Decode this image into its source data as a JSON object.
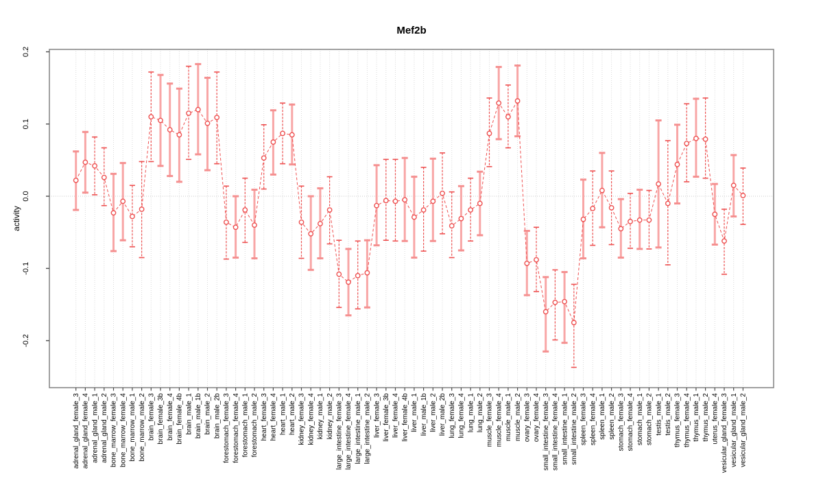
{
  "figure": {
    "title": "Mef2b"
  },
  "chart_data": {
    "type": "line",
    "title": "Mef2b",
    "xlabel": "",
    "ylabel": "activity",
    "ylim": [
      -0.265,
      0.203
    ],
    "yticks": [
      -0.2,
      -0.1,
      0.0,
      0.1,
      0.2
    ],
    "ytick_labels": [
      "-0.2",
      "-0.1",
      "0.0",
      "0.1",
      "0.2"
    ],
    "legend": "none",
    "grid": {
      "vertical": "dotted-per-category",
      "zero_line": "dotted"
    },
    "marker": "open-circle",
    "line_style": "dashed",
    "colors": {
      "point": "#ee4f4f",
      "line": "#ee4f4f",
      "error_bar_solid": "#f8a6a6",
      "error_bar_cap": "#f59090",
      "error_bar_dashed": "#ee4f4f",
      "frame": "#808080",
      "grid": "#d8d8d8",
      "zero_line": "#c9c9c9",
      "tick": "#4d4d4d",
      "text": "#000000"
    },
    "categories": [
      "adrenal_gland_female_3",
      "adrenal_gland_female_4",
      "adrenal_gland_male_1",
      "adrenal_gland_male_2",
      "bone_marrow_female_3",
      "bone_marrow_female_4",
      "bone_marrow_male_1",
      "bone_marrow_male_2",
      "brain_female_3",
      "brain_female_3b",
      "brain_female_4",
      "brain_female_4b",
      "brain_male_1",
      "brain_male_1b",
      "brain_male_2",
      "brain_male_2b",
      "forestomach_female_3",
      "forestomach_female_4",
      "forestomach_male_1",
      "forestomach_male_2",
      "heart_female_3",
      "heart_female_4",
      "heart_male_1",
      "heart_male_2",
      "kidney_female_3",
      "kidney_female_4",
      "kidney_male_1",
      "kidney_male_2",
      "large_intestine_female_3",
      "large_intestine_female_4",
      "large_intestine_male_1",
      "large_intestine_male_2",
      "liver_female_3",
      "liver_female_3b",
      "liver_female_4",
      "liver_female_4b",
      "liver_male_1",
      "liver_male_1b",
      "liver_male_2",
      "liver_male_2b",
      "lung_female_3",
      "lung_female_4",
      "lung_male_1",
      "lung_male_2",
      "muscle_female_3",
      "muscle_female_4",
      "muscle_male_1",
      "muscle_male_2",
      "ovary_female_3",
      "ovary_female_4",
      "small_intestine_female_3",
      "small_intestine_female_4",
      "small_intestine_male_1",
      "small_intestine_male_2",
      "spleen_female_3",
      "spleen_female_4",
      "spleen_male_1",
      "spleen_male_2",
      "stomach_female_3",
      "stomach_female_4",
      "stomach_male_1",
      "stomach_male_2",
      "testis_male_1",
      "testis_male_2",
      "thymus_female_3",
      "thymus_female_4",
      "thymus_male_1",
      "thymus_male_2",
      "uterus_female_4",
      "vesicular_gland_female_3",
      "vesicular_gland_male_1",
      "vesicular_gland_male_2"
    ],
    "series": [
      {
        "name": "activity",
        "values": [
          0.022,
          0.047,
          0.042,
          0.026,
          -0.023,
          -0.007,
          -0.028,
          -0.018,
          0.11,
          0.105,
          0.092,
          0.085,
          0.115,
          0.12,
          0.101,
          0.109,
          -0.036,
          -0.043,
          -0.019,
          -0.04,
          0.053,
          0.075,
          0.087,
          0.085,
          -0.036,
          -0.052,
          -0.038,
          -0.019,
          -0.108,
          -0.119,
          -0.11,
          -0.106,
          -0.013,
          -0.006,
          -0.007,
          -0.005,
          -0.029,
          -0.019,
          -0.007,
          0.004,
          -0.041,
          -0.031,
          -0.019,
          -0.01,
          0.087,
          0.129,
          0.11,
          0.132,
          -0.093,
          -0.088,
          -0.16,
          -0.147,
          -0.146,
          -0.175,
          -0.032,
          -0.017,
          0.008,
          -0.016,
          -0.045,
          -0.035,
          -0.033,
          -0.033,
          0.017,
          -0.01,
          0.044,
          0.073,
          0.08,
          0.079,
          -0.025,
          -0.062,
          0.015,
          0.001
        ],
        "err_lo": [
          -0.019,
          0.005,
          0.002,
          -0.013,
          -0.076,
          -0.061,
          -0.07,
          -0.085,
          0.048,
          0.042,
          0.028,
          0.02,
          0.051,
          0.058,
          0.036,
          0.045,
          -0.087,
          -0.085,
          -0.064,
          -0.086,
          0.01,
          0.03,
          0.045,
          0.044,
          -0.086,
          -0.102,
          -0.086,
          -0.066,
          -0.154,
          -0.165,
          -0.156,
          -0.154,
          -0.068,
          -0.061,
          -0.062,
          -0.062,
          -0.085,
          -0.076,
          -0.062,
          -0.052,
          -0.085,
          -0.075,
          -0.062,
          -0.054,
          0.041,
          0.079,
          0.067,
          0.083,
          -0.137,
          -0.132,
          -0.215,
          -0.199,
          -0.203,
          -0.237,
          -0.086,
          -0.068,
          -0.043,
          -0.067,
          -0.085,
          -0.072,
          -0.073,
          -0.073,
          -0.071,
          -0.095,
          -0.01,
          0.02,
          0.027,
          0.025,
          -0.067,
          -0.108,
          -0.028,
          -0.039
        ],
        "err_hi": [
          0.062,
          0.089,
          0.082,
          0.067,
          0.031,
          0.046,
          0.015,
          0.048,
          0.172,
          0.168,
          0.156,
          0.149,
          0.18,
          0.183,
          0.164,
          0.172,
          0.014,
          0,
          0.025,
          0.009,
          0.099,
          0.119,
          0.129,
          0.127,
          0.014,
          0,
          0.011,
          0.027,
          -0.061,
          -0.073,
          -0.062,
          -0.061,
          0.043,
          0.051,
          0.051,
          0.053,
          0.027,
          0.04,
          0.052,
          0.06,
          0.006,
          0.014,
          0.025,
          0.034,
          0.136,
          0.179,
          0.154,
          0.181,
          -0.048,
          -0.043,
          -0.112,
          -0.102,
          -0.105,
          -0.122,
          0.023,
          0.035,
          0.06,
          0.035,
          -0.004,
          0.004,
          0.009,
          0.008,
          0.105,
          0.077,
          0.099,
          0.128,
          0.135,
          0.136,
          0.017,
          -0.018,
          0.057,
          0.039
        ],
        "err_style": [
          "solid",
          "solid",
          "dashed",
          "dashed",
          "solid",
          "solid",
          "dashed",
          "dashed",
          "dashed",
          "solid",
          "solid",
          "solid",
          "dashed",
          "solid",
          "solid",
          "dashed",
          "dashed",
          "solid",
          "dashed",
          "solid",
          "dashed",
          "solid",
          "dashed",
          "solid",
          "dashed",
          "solid",
          "solid",
          "dashed",
          "dashed",
          "solid",
          "dashed",
          "solid",
          "solid",
          "dashed",
          "dashed",
          "solid",
          "solid",
          "dashed",
          "solid",
          "dashed",
          "dashed",
          "solid",
          "dashed",
          "solid",
          "dashed",
          "solid",
          "dashed",
          "solid",
          "solid",
          "dashed",
          "solid",
          "dashed",
          "solid",
          "dashed",
          "solid",
          "dashed",
          "solid",
          "dashed",
          "solid",
          "dashed",
          "solid",
          "dashed",
          "solid",
          "dashed",
          "solid",
          "dashed",
          "solid",
          "dashed",
          "solid",
          "dashed",
          "solid",
          "dashed"
        ]
      }
    ]
  }
}
